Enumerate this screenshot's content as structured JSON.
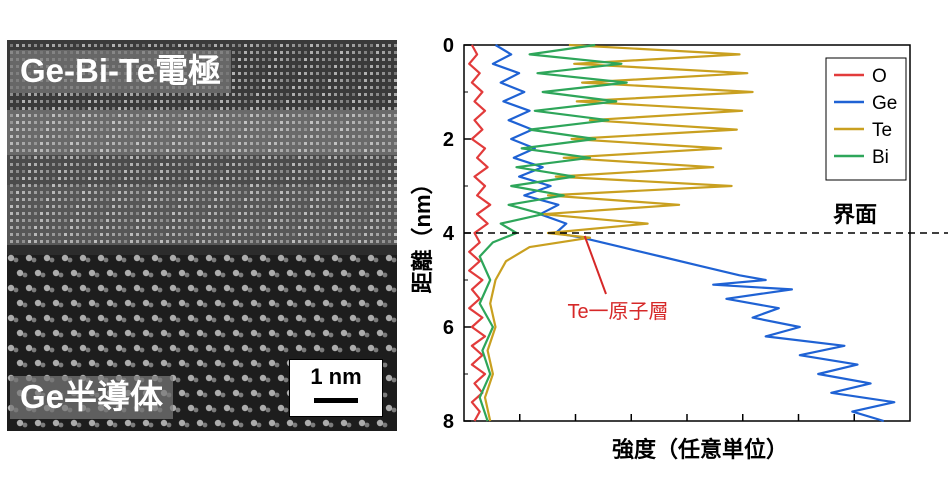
{
  "micrograph": {
    "electrode_label": "Ge-Bi-Te電極",
    "semiconductor_label": "Ge半導体",
    "scale_bar": "1 nm"
  },
  "chart_data": {
    "type": "line",
    "xlabel": "強度（任意単位）",
    "ylabel": "距離（nm）",
    "ylim": [
      0,
      8
    ],
    "y_inverted": true,
    "y_ticks": [
      "0",
      "2",
      "4",
      "6",
      "8"
    ],
    "x_ticks_labeled": false,
    "interface_depth": 4,
    "interface_label": "界面",
    "annotation": "Te一原子層",
    "annotation_at": {
      "x": 4.6,
      "y": 4.0
    },
    "xlim": [
      0,
      17
    ],
    "legend": {
      "position": "top-right",
      "entries": [
        "O",
        "Ge",
        "Te",
        "Bi"
      ]
    },
    "colors": {
      "O": "#e23b3b",
      "Ge": "#1f62d4",
      "Te": "#c9a020",
      "Bi": "#2ea65a"
    },
    "series": [
      {
        "name": "O",
        "points": [
          [
            0.3,
            0.0
          ],
          [
            0.5,
            0.2
          ],
          [
            0.2,
            0.4
          ],
          [
            0.6,
            0.6
          ],
          [
            0.3,
            0.8
          ],
          [
            0.7,
            1.0
          ],
          [
            0.4,
            1.2
          ],
          [
            0.8,
            1.4
          ],
          [
            0.4,
            1.6
          ],
          [
            0.7,
            1.8
          ],
          [
            0.3,
            2.0
          ],
          [
            0.8,
            2.2
          ],
          [
            0.5,
            2.4
          ],
          [
            0.9,
            2.6
          ],
          [
            0.4,
            2.8
          ],
          [
            0.8,
            3.0
          ],
          [
            0.5,
            3.2
          ],
          [
            1.0,
            3.4
          ],
          [
            0.5,
            3.6
          ],
          [
            0.9,
            3.8
          ],
          [
            0.4,
            4.0
          ],
          [
            0.6,
            4.2
          ],
          [
            0.2,
            4.4
          ],
          [
            0.6,
            4.6
          ],
          [
            0.2,
            4.8
          ],
          [
            0.7,
            5.0
          ],
          [
            0.3,
            5.2
          ],
          [
            0.6,
            5.4
          ],
          [
            0.2,
            5.6
          ],
          [
            0.7,
            5.8
          ],
          [
            0.3,
            6.0
          ],
          [
            0.8,
            6.2
          ],
          [
            0.3,
            6.4
          ],
          [
            0.7,
            6.6
          ],
          [
            0.3,
            6.8
          ],
          [
            0.8,
            7.0
          ],
          [
            0.4,
            7.2
          ],
          [
            0.7,
            7.4
          ],
          [
            0.3,
            7.6
          ],
          [
            0.6,
            7.8
          ],
          [
            0.4,
            8.0
          ]
        ]
      },
      {
        "name": "Ge",
        "points": [
          [
            1.2,
            0.0
          ],
          [
            1.8,
            0.2
          ],
          [
            1.1,
            0.4
          ],
          [
            2.1,
            0.6
          ],
          [
            1.4,
            0.8
          ],
          [
            2.3,
            1.0
          ],
          [
            1.5,
            1.2
          ],
          [
            2.5,
            1.4
          ],
          [
            1.7,
            1.6
          ],
          [
            2.6,
            1.8
          ],
          [
            1.8,
            2.0
          ],
          [
            2.7,
            2.2
          ],
          [
            1.9,
            2.4
          ],
          [
            3.0,
            2.6
          ],
          [
            2.1,
            2.8
          ],
          [
            3.3,
            3.0
          ],
          [
            2.3,
            3.2
          ],
          [
            3.6,
            3.4
          ],
          [
            2.9,
            3.6
          ],
          [
            3.9,
            3.8
          ],
          [
            3.5,
            4.0
          ],
          [
            4.5,
            4.1
          ],
          [
            6.0,
            4.3
          ],
          [
            7.5,
            4.5
          ],
          [
            9.0,
            4.7
          ],
          [
            10.5,
            4.9
          ],
          [
            11.5,
            5.0
          ],
          [
            9.5,
            5.1
          ],
          [
            12.5,
            5.2
          ],
          [
            10.0,
            5.4
          ],
          [
            12.0,
            5.6
          ],
          [
            11.0,
            5.8
          ],
          [
            12.8,
            6.0
          ],
          [
            11.5,
            6.2
          ],
          [
            14.5,
            6.4
          ],
          [
            12.8,
            6.6
          ],
          [
            15.0,
            6.8
          ],
          [
            13.5,
            7.0
          ],
          [
            15.5,
            7.2
          ],
          [
            14.0,
            7.4
          ],
          [
            16.4,
            7.6
          ],
          [
            14.8,
            7.8
          ],
          [
            16.0,
            8.0
          ]
        ]
      },
      {
        "name": "Te",
        "points": [
          [
            4.0,
            0.0
          ],
          [
            10.5,
            0.2
          ],
          [
            4.2,
            0.4
          ],
          [
            10.8,
            0.6
          ],
          [
            4.5,
            0.8
          ],
          [
            11.0,
            1.0
          ],
          [
            4.3,
            1.2
          ],
          [
            10.6,
            1.4
          ],
          [
            4.8,
            1.6
          ],
          [
            10.4,
            1.8
          ],
          [
            4.1,
            2.0
          ],
          [
            9.8,
            2.2
          ],
          [
            3.8,
            2.4
          ],
          [
            9.5,
            2.6
          ],
          [
            3.5,
            2.8
          ],
          [
            10.2,
            3.0
          ],
          [
            3.2,
            3.2
          ],
          [
            8.2,
            3.4
          ],
          [
            3.0,
            3.6
          ],
          [
            7.0,
            3.8
          ],
          [
            3.2,
            4.0
          ],
          [
            4.8,
            4.1
          ],
          [
            2.5,
            4.3
          ],
          [
            1.6,
            4.6
          ],
          [
            1.2,
            5.0
          ],
          [
            1.0,
            5.5
          ],
          [
            1.2,
            6.0
          ],
          [
            0.9,
            6.5
          ],
          [
            1.1,
            7.0
          ],
          [
            0.8,
            7.5
          ],
          [
            1.0,
            8.0
          ]
        ]
      },
      {
        "name": "Bi",
        "points": [
          [
            5.0,
            0.0
          ],
          [
            2.5,
            0.2
          ],
          [
            6.0,
            0.4
          ],
          [
            2.8,
            0.6
          ],
          [
            6.2,
            0.8
          ],
          [
            3.0,
            1.0
          ],
          [
            5.8,
            1.2
          ],
          [
            2.7,
            1.4
          ],
          [
            5.5,
            1.6
          ],
          [
            2.5,
            1.8
          ],
          [
            5.0,
            2.0
          ],
          [
            2.2,
            2.2
          ],
          [
            4.8,
            2.4
          ],
          [
            2.0,
            2.6
          ],
          [
            4.2,
            2.8
          ],
          [
            1.8,
            3.0
          ],
          [
            3.8,
            3.2
          ],
          [
            1.7,
            3.4
          ],
          [
            3.0,
            3.6
          ],
          [
            1.4,
            3.8
          ],
          [
            2.0,
            4.0
          ],
          [
            1.1,
            4.2
          ],
          [
            0.6,
            4.5
          ],
          [
            1.0,
            5.0
          ],
          [
            0.6,
            5.5
          ],
          [
            1.1,
            6.0
          ],
          [
            0.7,
            6.5
          ],
          [
            1.0,
            7.0
          ],
          [
            0.6,
            7.5
          ],
          [
            0.9,
            8.0
          ]
        ]
      }
    ]
  }
}
